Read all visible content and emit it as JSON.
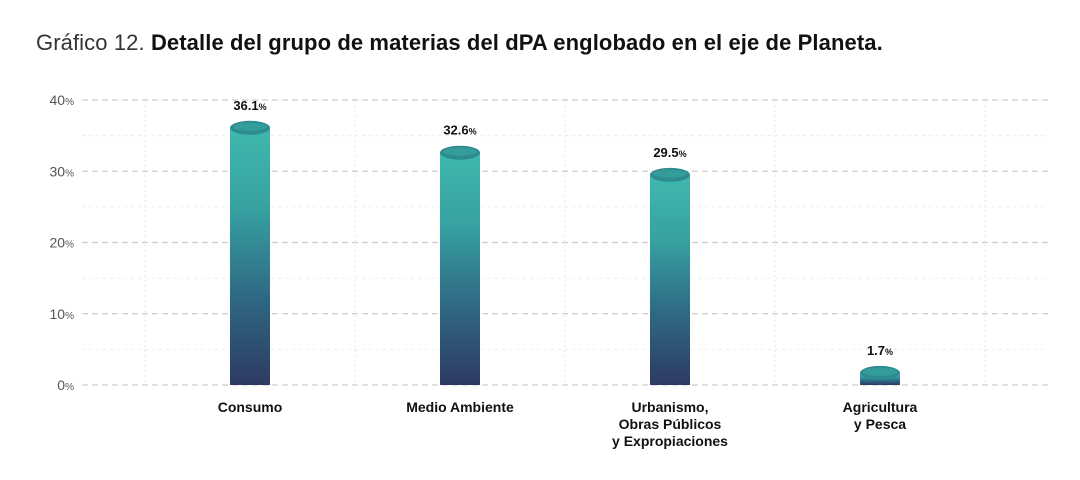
{
  "title": {
    "prefix": "Gráfico 12.",
    "main": "Detalle del grupo de materias del dPA englobado en el eje de Planeta."
  },
  "chart_data": {
    "type": "bar",
    "categories": [
      [
        "Consumo"
      ],
      [
        "Medio Ambiente"
      ],
      [
        "Urbanismo,",
        "Obras Públicos",
        "y Expropiaciones"
      ],
      [
        "Agricultura",
        "y Pesca"
      ]
    ],
    "values": [
      36.1,
      32.6,
      29.5,
      1.7
    ],
    "value_labels": [
      "36.1",
      "32.6",
      "29.5",
      "1.7"
    ],
    "value_unit": "%",
    "ylim": [
      0,
      40
    ],
    "yticks": [
      "0",
      "10",
      "20",
      "30",
      "40"
    ],
    "ytick_unit": "%",
    "grid": true,
    "colors": {
      "bar_top": "#3fb8ad",
      "bar_bottom": "#2e3a63",
      "cap": "#2f8c8e",
      "grid": "#cccccc"
    }
  }
}
